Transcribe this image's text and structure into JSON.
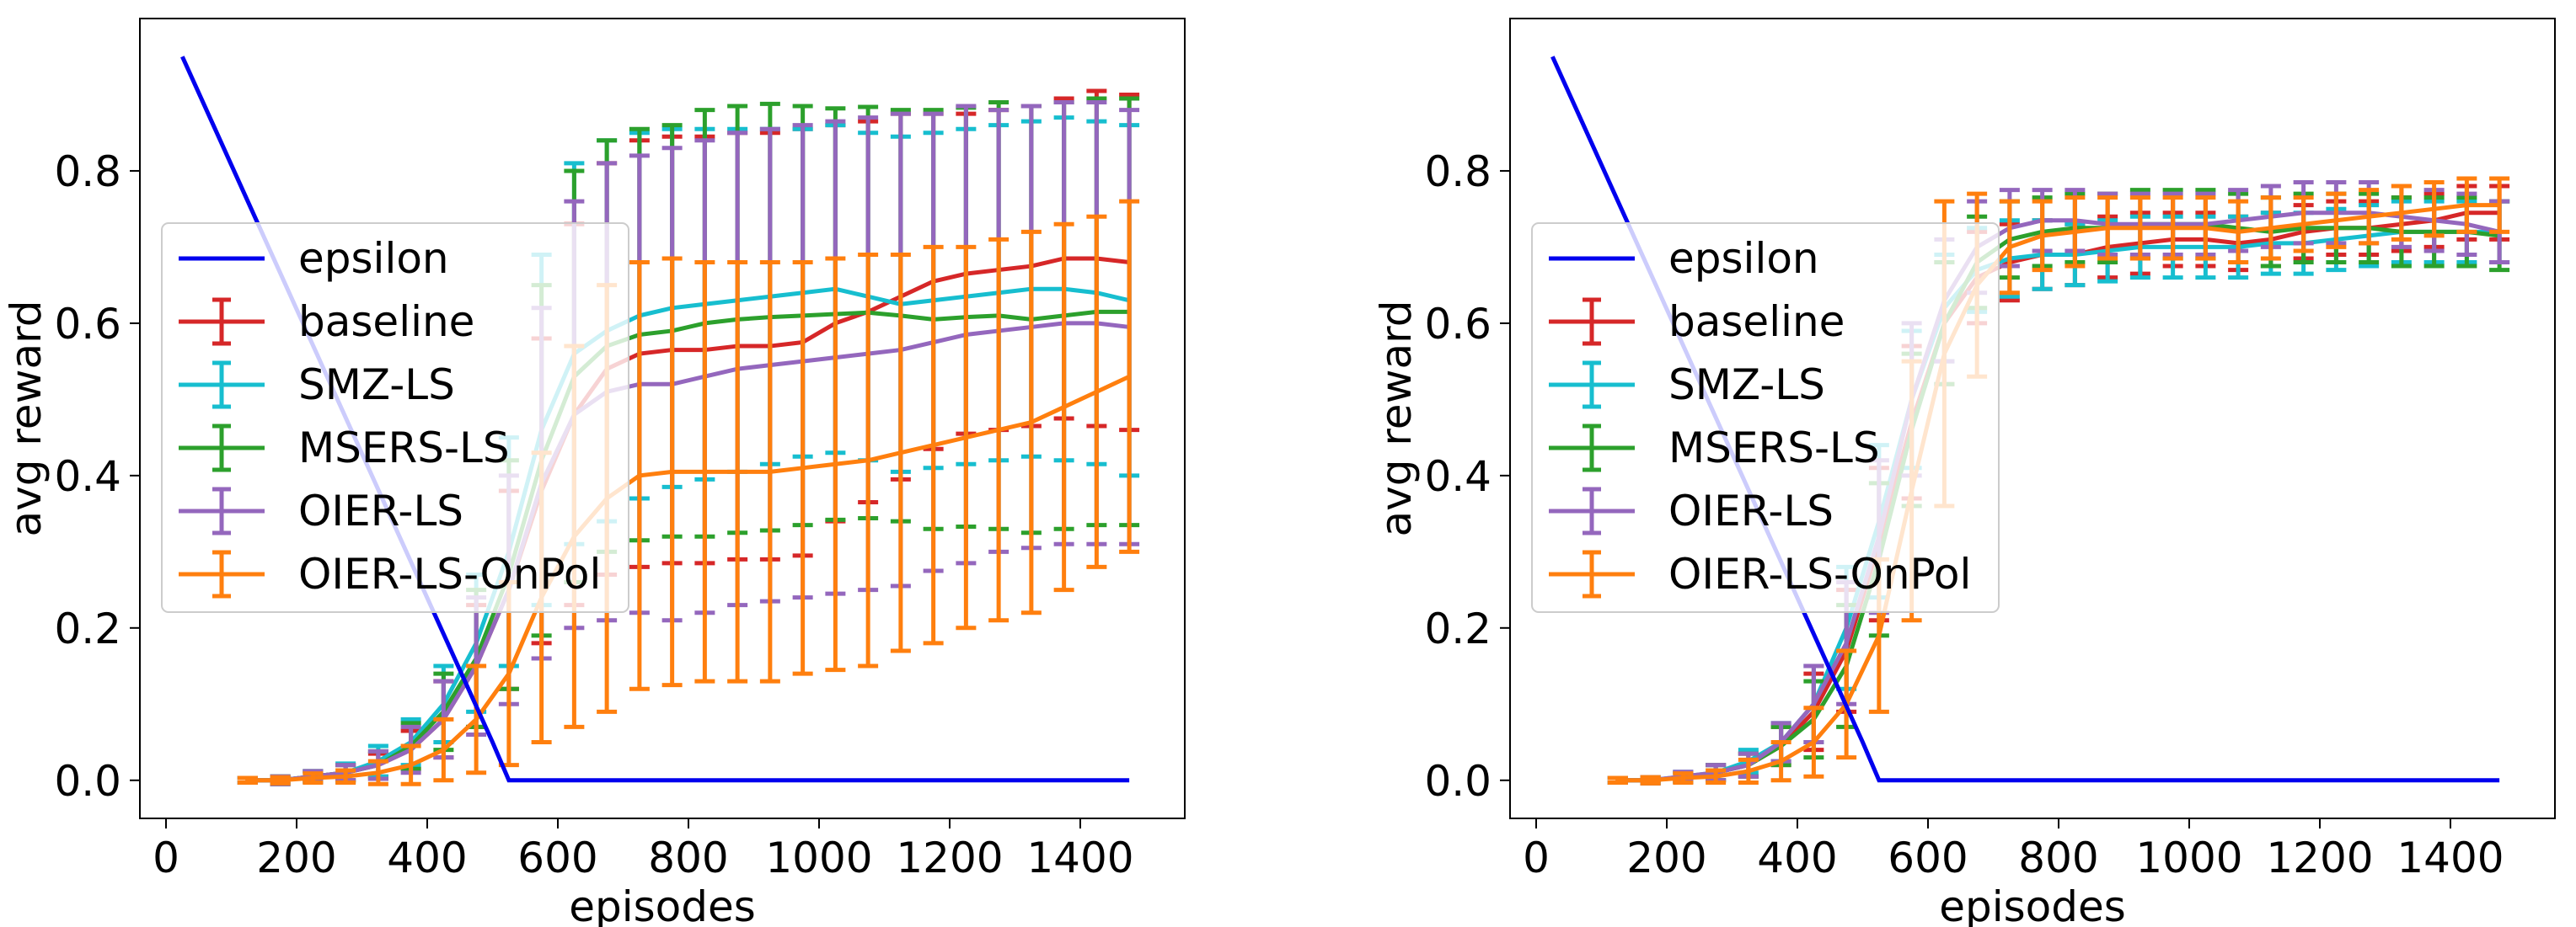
{
  "chart_data": [
    {
      "type": "line",
      "panel": "left",
      "xlabel": "episodes",
      "ylabel": "avg reward",
      "xlim": [
        -40,
        1560
      ],
      "ylim": [
        -0.05,
        1.0
      ],
      "xticks": [
        "0",
        "200",
        "400",
        "600",
        "800",
        "1000",
        "1200",
        "1400"
      ],
      "yticks": [
        "0.0",
        "0.2",
        "0.4",
        "0.6",
        "0.8"
      ],
      "legend": [
        "epsilon",
        "baseline",
        "SMZ-LS",
        "MSERS-LS",
        "OIER-LS",
        "OIER-LS-OnPol"
      ],
      "legend_position": "center-left",
      "x": [
        125,
        175,
        225,
        275,
        325,
        375,
        425,
        475,
        525,
        575,
        625,
        675,
        725,
        775,
        825,
        875,
        925,
        975,
        1025,
        1075,
        1125,
        1175,
        1225,
        1275,
        1325,
        1375,
        1425,
        1475
      ],
      "epsilon": {
        "name": "epsilon",
        "x": [
          25,
          500,
          525,
          1475
        ],
        "values": [
          0.95,
          0.05,
          0.0,
          0.0
        ]
      },
      "series": [
        {
          "name": "baseline",
          "values": [
            0.0,
            0.0,
            0.005,
            0.01,
            0.02,
            0.04,
            0.08,
            0.15,
            0.25,
            0.38,
            0.48,
            0.54,
            0.56,
            0.565,
            0.565,
            0.57,
            0.57,
            0.575,
            0.6,
            0.615,
            0.635,
            0.655,
            0.665,
            0.67,
            0.675,
            0.685,
            0.685,
            0.68
          ],
          "err": [
            0.003,
            0.005,
            0.006,
            0.01,
            0.015,
            0.025,
            0.05,
            0.08,
            0.13,
            0.2,
            0.25,
            0.27,
            0.28,
            0.28,
            0.28,
            0.28,
            0.28,
            0.28,
            0.26,
            0.25,
            0.24,
            0.22,
            0.21,
            0.21,
            0.21,
            0.21,
            0.22,
            0.22
          ]
        },
        {
          "name": "SMZ-LS",
          "values": [
            0.0,
            0.0,
            0.005,
            0.01,
            0.025,
            0.05,
            0.1,
            0.18,
            0.3,
            0.46,
            0.56,
            0.59,
            0.61,
            0.62,
            0.625,
            0.63,
            0.635,
            0.64,
            0.645,
            0.635,
            0.625,
            0.63,
            0.635,
            0.64,
            0.645,
            0.645,
            0.64,
            0.63
          ],
          "err": [
            0.003,
            0.005,
            0.007,
            0.012,
            0.02,
            0.03,
            0.05,
            0.09,
            0.15,
            0.23,
            0.25,
            0.25,
            0.24,
            0.235,
            0.23,
            0.225,
            0.22,
            0.215,
            0.215,
            0.215,
            0.22,
            0.22,
            0.22,
            0.22,
            0.22,
            0.225,
            0.225,
            0.23
          ]
        },
        {
          "name": "MSERS-LS",
          "values": [
            0.0,
            0.0,
            0.005,
            0.01,
            0.02,
            0.045,
            0.09,
            0.16,
            0.27,
            0.42,
            0.53,
            0.57,
            0.585,
            0.59,
            0.6,
            0.605,
            0.608,
            0.61,
            0.612,
            0.614,
            0.61,
            0.605,
            0.608,
            0.61,
            0.605,
            0.61,
            0.615,
            0.615
          ],
          "err": [
            0.003,
            0.005,
            0.007,
            0.01,
            0.018,
            0.03,
            0.05,
            0.09,
            0.15,
            0.23,
            0.27,
            0.27,
            0.27,
            0.27,
            0.28,
            0.28,
            0.28,
            0.275,
            0.27,
            0.27,
            0.27,
            0.275,
            0.275,
            0.28,
            0.28,
            0.28,
            0.28,
            0.28
          ]
        },
        {
          "name": "OIER-LS",
          "values": [
            0.0,
            0.0,
            0.005,
            0.01,
            0.02,
            0.04,
            0.08,
            0.15,
            0.25,
            0.39,
            0.48,
            0.51,
            0.52,
            0.52,
            0.53,
            0.54,
            0.545,
            0.55,
            0.555,
            0.56,
            0.565,
            0.575,
            0.585,
            0.59,
            0.595,
            0.6,
            0.6,
            0.595
          ],
          "err": [
            0.003,
            0.005,
            0.007,
            0.01,
            0.018,
            0.03,
            0.05,
            0.09,
            0.15,
            0.23,
            0.28,
            0.3,
            0.3,
            0.31,
            0.31,
            0.31,
            0.31,
            0.31,
            0.31,
            0.31,
            0.31,
            0.3,
            0.3,
            0.29,
            0.29,
            0.29,
            0.29,
            0.285
          ]
        },
        {
          "name": "OIER-LS-OnPol",
          "values": [
            0.0,
            0.0,
            0.003,
            0.005,
            0.01,
            0.02,
            0.04,
            0.08,
            0.14,
            0.24,
            0.32,
            0.37,
            0.4,
            0.405,
            0.405,
            0.405,
            0.405,
            0.41,
            0.415,
            0.42,
            0.43,
            0.44,
            0.45,
            0.46,
            0.47,
            0.49,
            0.51,
            0.53
          ],
          "err": [
            0.003,
            0.004,
            0.006,
            0.008,
            0.015,
            0.025,
            0.04,
            0.07,
            0.12,
            0.19,
            0.25,
            0.28,
            0.28,
            0.28,
            0.275,
            0.275,
            0.275,
            0.27,
            0.27,
            0.27,
            0.26,
            0.26,
            0.25,
            0.25,
            0.25,
            0.24,
            0.23,
            0.23
          ]
        }
      ]
    },
    {
      "type": "line",
      "panel": "right",
      "xlabel": "episodes",
      "ylabel": "avg reward",
      "xlim": [
        -40,
        1560
      ],
      "ylim": [
        -0.05,
        1.0
      ],
      "xticks": [
        "0",
        "200",
        "400",
        "600",
        "800",
        "1000",
        "1200",
        "1400"
      ],
      "yticks": [
        "0.0",
        "0.2",
        "0.4",
        "0.6",
        "0.8"
      ],
      "legend": [
        "epsilon",
        "baseline",
        "SMZ-LS",
        "MSERS-LS",
        "OIER-LS",
        "OIER-LS-OnPol"
      ],
      "legend_position": "center-left",
      "x": [
        125,
        175,
        225,
        275,
        325,
        375,
        425,
        475,
        525,
        575,
        625,
        675,
        725,
        775,
        825,
        875,
        925,
        975,
        1025,
        1075,
        1125,
        1175,
        1225,
        1275,
        1325,
        1375,
        1425,
        1475
      ],
      "epsilon": {
        "name": "epsilon",
        "x": [
          25,
          500,
          525,
          1475
        ],
        "values": [
          0.95,
          0.05,
          0.0,
          0.0
        ]
      },
      "series": [
        {
          "name": "baseline",
          "values": [
            0.0,
            0.0,
            0.004,
            0.01,
            0.02,
            0.045,
            0.09,
            0.17,
            0.31,
            0.47,
            0.6,
            0.66,
            0.68,
            0.69,
            0.69,
            0.7,
            0.705,
            0.71,
            0.71,
            0.705,
            0.71,
            0.72,
            0.725,
            0.725,
            0.73,
            0.735,
            0.745,
            0.745
          ],
          "err": [
            0.003,
            0.004,
            0.006,
            0.01,
            0.015,
            0.025,
            0.05,
            0.08,
            0.1,
            0.1,
            0.08,
            0.06,
            0.05,
            0.045,
            0.04,
            0.04,
            0.04,
            0.035,
            0.035,
            0.035,
            0.035,
            0.035,
            0.035,
            0.035,
            0.035,
            0.035,
            0.035,
            0.035
          ]
        },
        {
          "name": "SMZ-LS",
          "values": [
            0.0,
            0.0,
            0.005,
            0.01,
            0.025,
            0.05,
            0.1,
            0.2,
            0.34,
            0.5,
            0.62,
            0.67,
            0.685,
            0.69,
            0.69,
            0.695,
            0.7,
            0.7,
            0.7,
            0.7,
            0.705,
            0.705,
            0.71,
            0.715,
            0.72,
            0.72,
            0.72,
            0.72
          ],
          "err": [
            0.003,
            0.004,
            0.006,
            0.01,
            0.015,
            0.025,
            0.05,
            0.08,
            0.1,
            0.09,
            0.07,
            0.055,
            0.05,
            0.045,
            0.04,
            0.04,
            0.04,
            0.04,
            0.04,
            0.04,
            0.04,
            0.04,
            0.04,
            0.04,
            0.04,
            0.04,
            0.04,
            0.04
          ]
        },
        {
          "name": "MSERS-LS",
          "values": [
            0.0,
            0.0,
            0.004,
            0.01,
            0.02,
            0.045,
            0.08,
            0.15,
            0.29,
            0.46,
            0.6,
            0.68,
            0.71,
            0.72,
            0.725,
            0.725,
            0.73,
            0.73,
            0.73,
            0.725,
            0.72,
            0.725,
            0.725,
            0.725,
            0.72,
            0.72,
            0.72,
            0.715
          ],
          "err": [
            0.003,
            0.004,
            0.006,
            0.01,
            0.015,
            0.025,
            0.05,
            0.08,
            0.1,
            0.1,
            0.08,
            0.06,
            0.05,
            0.045,
            0.045,
            0.045,
            0.045,
            0.045,
            0.045,
            0.045,
            0.045,
            0.045,
            0.045,
            0.045,
            0.045,
            0.045,
            0.045,
            0.045
          ]
        },
        {
          "name": "OIER-LS",
          "values": [
            0.0,
            0.0,
            0.005,
            0.01,
            0.02,
            0.05,
            0.1,
            0.18,
            0.32,
            0.5,
            0.63,
            0.7,
            0.725,
            0.735,
            0.735,
            0.73,
            0.73,
            0.73,
            0.73,
            0.735,
            0.74,
            0.745,
            0.745,
            0.745,
            0.74,
            0.735,
            0.73,
            0.72
          ],
          "err": [
            0.003,
            0.004,
            0.006,
            0.01,
            0.015,
            0.025,
            0.05,
            0.08,
            0.1,
            0.1,
            0.08,
            0.06,
            0.05,
            0.04,
            0.04,
            0.04,
            0.04,
            0.04,
            0.04,
            0.04,
            0.04,
            0.04,
            0.04,
            0.04,
            0.04,
            0.04,
            0.04,
            0.04
          ]
        },
        {
          "name": "OIER-LS-OnPol",
          "values": [
            0.0,
            0.0,
            0.003,
            0.005,
            0.012,
            0.025,
            0.05,
            0.1,
            0.19,
            0.38,
            0.56,
            0.65,
            0.7,
            0.715,
            0.72,
            0.725,
            0.725,
            0.725,
            0.725,
            0.72,
            0.725,
            0.73,
            0.735,
            0.74,
            0.745,
            0.75,
            0.755,
            0.755
          ],
          "err": [
            0.003,
            0.004,
            0.006,
            0.008,
            0.015,
            0.025,
            0.045,
            0.07,
            0.1,
            0.17,
            0.2,
            0.12,
            0.06,
            0.045,
            0.045,
            0.04,
            0.04,
            0.04,
            0.04,
            0.04,
            0.04,
            0.035,
            0.035,
            0.035,
            0.035,
            0.035,
            0.035,
            0.035
          ]
        }
      ]
    }
  ],
  "colors": {
    "epsilon": "#0000ee",
    "baseline": "#d62728",
    "SMZ-LS": "#17becf",
    "MSERS-LS": "#2ca02c",
    "OIER-LS": "#9467bd",
    "OIER-LS-OnPol": "#ff7f0e"
  }
}
